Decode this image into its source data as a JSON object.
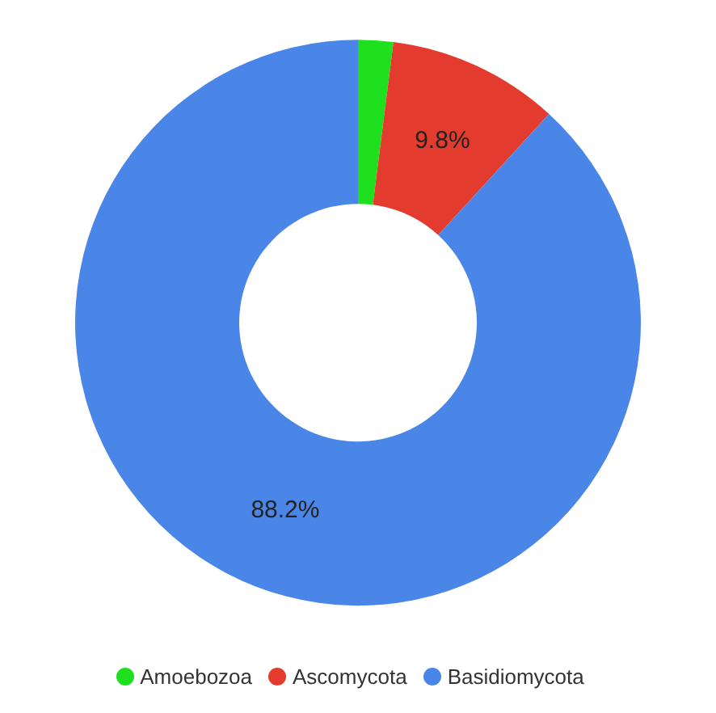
{
  "chart_data": {
    "type": "donut",
    "categories": [
      "Amoebozoa",
      "Ascomycota",
      "Basidiomycota"
    ],
    "values": [
      2.0,
      9.8,
      88.2
    ],
    "colors": [
      "#1ee01e",
      "#e33b2e",
      "#4a86e8"
    ],
    "value_labels": [
      null,
      "9.8%",
      "88.2%"
    ],
    "legend": "bottom"
  }
}
